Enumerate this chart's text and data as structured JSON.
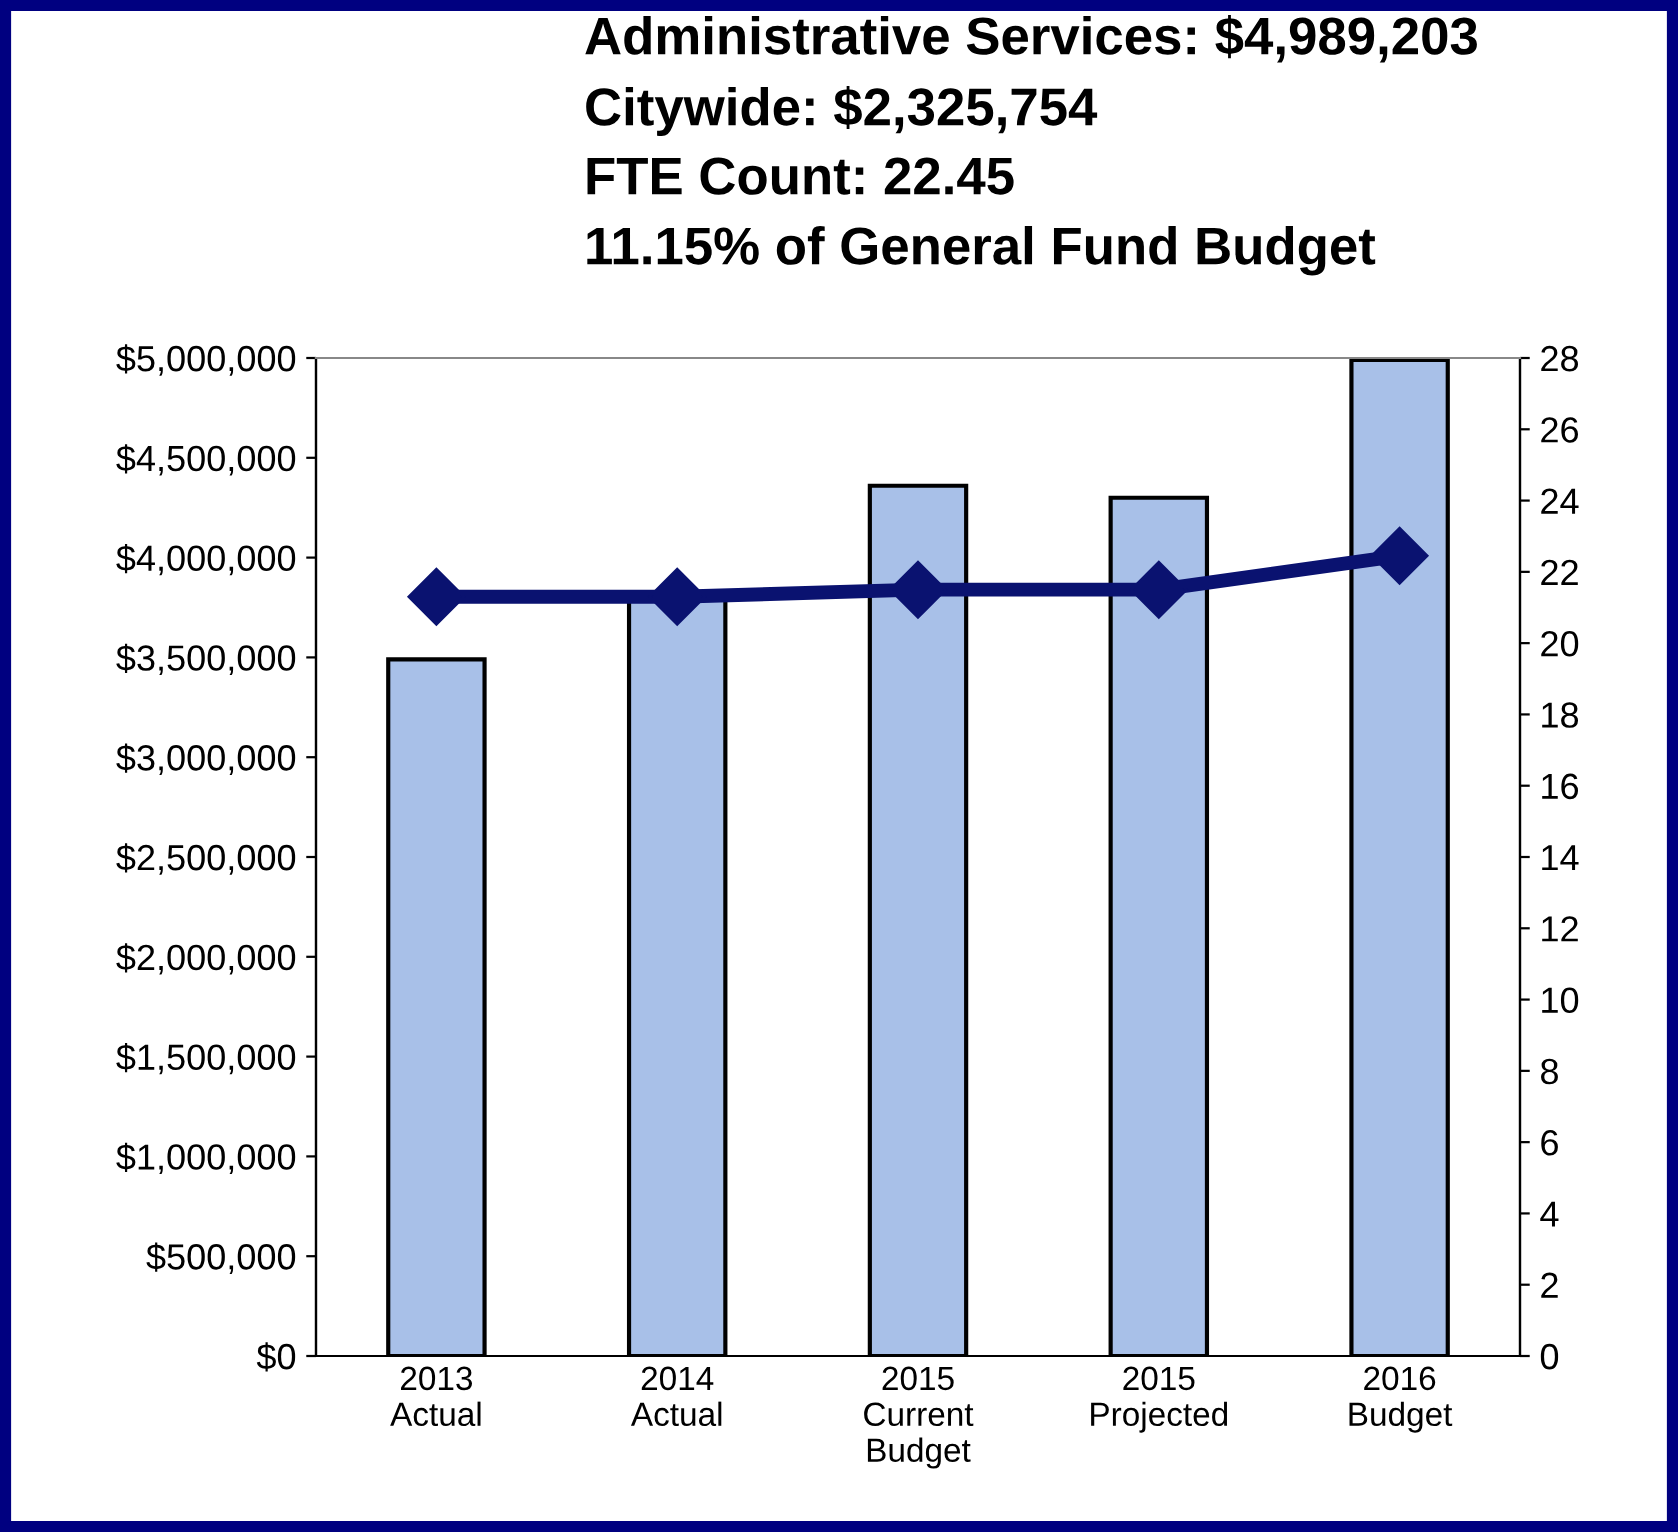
{
  "chart_data": {
    "type": "bar",
    "title": "Administrative Services: $4,989,203",
    "annotations": [
      "Citywide: $2,325,754",
      "FTE Count: 22.45",
      "11.15% of General Fund Budget"
    ],
    "categories": [
      "2013\nActual",
      "2014\nActual",
      "2015\nCurrent\nBudget",
      "2015\nProjected",
      "2016\nBudget"
    ],
    "series": [
      {
        "color": "#a8c0e8",
        "values": [
          3490000,
          3800000,
          4360000,
          4300000,
          4990000
        ]
      },
      {
        "type": "line",
        "axis": "y2",
        "color": "#0a1270",
        "marker": "diamond",
        "values": [
          21.3,
          21.3,
          21.5,
          21.5,
          22.45
        ]
      }
    ],
    "ylim": [
      0,
      5000000
    ],
    "yticks": [
      {
        "value": 0,
        "label": "$0"
      },
      {
        "value": 500000,
        "label": "$500,000"
      },
      {
        "value": 1000000,
        "label": "$1,000,000"
      },
      {
        "value": 1500000,
        "label": "$1,500,000"
      },
      {
        "value": 2000000,
        "label": "$2,000,000"
      },
      {
        "value": 2500000,
        "label": "$2,500,000"
      },
      {
        "value": 3000000,
        "label": "$3,000,000"
      },
      {
        "value": 3500000,
        "label": "$3,500,000"
      },
      {
        "value": 4000000,
        "label": "$4,000,000"
      },
      {
        "value": 4500000,
        "label": "$4,500,000"
      },
      {
        "value": 5000000,
        "label": "$5,000,000"
      }
    ],
    "y2lim": [
      0,
      28
    ],
    "y2ticks": [
      0,
      2,
      4,
      6,
      8,
      10,
      12,
      14,
      16,
      18,
      20,
      22,
      24,
      26,
      28
    ],
    "grid": false,
    "legend": false
  }
}
